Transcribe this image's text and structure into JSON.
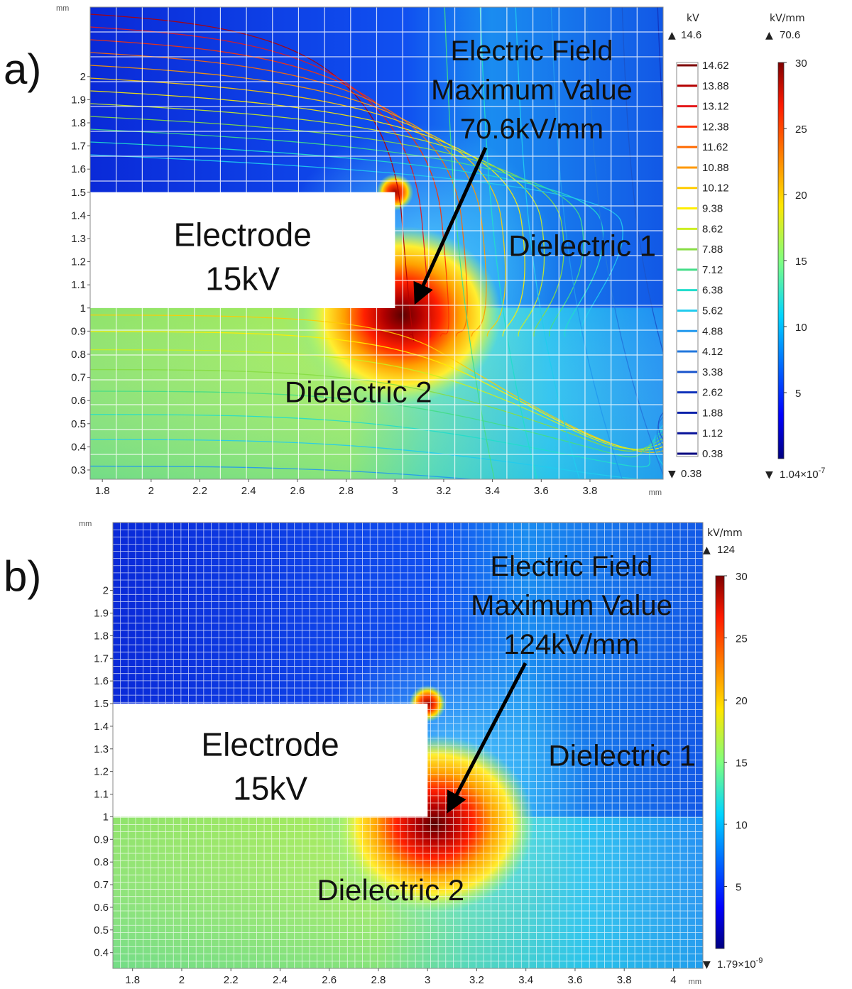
{
  "chart_data": [
    {
      "type": "heatmap",
      "panel_label": "a)",
      "x_unit": "mm",
      "y_unit": "mm",
      "xlim": [
        1.75,
        4.1
      ],
      "ylim": [
        0.26,
        2.3
      ],
      "x_ticks": [
        "1.8",
        "2",
        "2.2",
        "2.4",
        "2.6",
        "2.8",
        "3",
        "3.2",
        "3.4",
        "3.6",
        "3.8"
      ],
      "y_ticks": [
        "2",
        "1.9",
        "1.8",
        "1.7",
        "1.6",
        "1.5",
        "1.4",
        "1.3",
        "1.2",
        "1.1",
        "1",
        "0.9",
        "0.8",
        "0.7",
        "0.6",
        "0.5",
        "0.4",
        "0.3"
      ],
      "electrode": {
        "label_line1": "Electrode",
        "label_line2": "15kV",
        "x_range": [
          1.75,
          3.0
        ],
        "y_range": [
          1.0,
          1.5
        ]
      },
      "regions": [
        {
          "label": "Dielectric 1"
        },
        {
          "label": "Dielectric 2"
        }
      ],
      "annotation": {
        "line1": "Electric Field",
        "line2": "Maximum Value",
        "line3": "70.6kV/mm",
        "peak_kv_mm": 70.6,
        "peak_at": [
          3.0,
          1.0
        ]
      },
      "potential_colorbar": {
        "unit": "kV",
        "max_label": "14.6",
        "min_label": "0.38",
        "levels": [
          "14.62",
          "13.88",
          "13.12",
          "12.38",
          "11.62",
          "10.88",
          "10.12",
          "9.38",
          "8.62",
          "7.88",
          "7.12",
          "6.38",
          "5.62",
          "4.88",
          "4.12",
          "3.38",
          "2.62",
          "1.88",
          "1.12",
          "0.38"
        ],
        "level_colors": [
          "#7f0000",
          "#b40000",
          "#e41a1c",
          "#ff3300",
          "#ff6a00",
          "#ff9900",
          "#ffcc00",
          "#ffee00",
          "#ccee22",
          "#88dd44",
          "#44dd88",
          "#22ddcc",
          "#22ccee",
          "#2299ee",
          "#2277dd",
          "#1a55cc",
          "#1133bb",
          "#0a22aa",
          "#051199",
          "#000080"
        ]
      },
      "field_colorbar": {
        "unit": "kV/mm",
        "max_label": "70.6",
        "min_label": "1.04×10",
        "min_exp": "-7",
        "ticks": [
          "30",
          "25",
          "20",
          "15",
          "10",
          "5"
        ],
        "range": [
          0,
          30
        ]
      },
      "mesh": "coarse"
    },
    {
      "type": "heatmap",
      "panel_label": "b)",
      "x_unit": "mm",
      "y_unit": "mm",
      "xlim": [
        1.72,
        4.12
      ],
      "ylim": [
        0.33,
        2.3
      ],
      "x_ticks": [
        "1.8",
        "2",
        "2.2",
        "2.4",
        "2.6",
        "2.8",
        "3",
        "3.2",
        "3.4",
        "3.6",
        "3.8",
        "4"
      ],
      "y_ticks": [
        "2",
        "1.9",
        "1.8",
        "1.7",
        "1.6",
        "1.5",
        "1.4",
        "1.3",
        "1.2",
        "1.1",
        "1",
        "0.9",
        "0.8",
        "0.7",
        "0.6",
        "0.5",
        "0.4"
      ],
      "electrode": {
        "label_line1": "Electrode",
        "label_line2": "15kV",
        "x_range": [
          1.72,
          3.0
        ],
        "y_range": [
          1.0,
          1.5
        ]
      },
      "regions": [
        {
          "label": "Dielectric 1"
        },
        {
          "label": "Dielectric 2"
        }
      ],
      "annotation": {
        "line1": "Electric Field",
        "line2": "Maximum Value",
        "line3": "124kV/mm",
        "peak_kv_mm": 124,
        "peak_at": [
          3.0,
          1.0
        ]
      },
      "field_colorbar": {
        "unit": "kV/mm",
        "max_label": "124",
        "min_label": "1.79×10",
        "min_exp": "-9",
        "ticks": [
          "30",
          "25",
          "20",
          "15",
          "10",
          "5"
        ],
        "range": [
          0,
          30
        ]
      },
      "mesh": "fine"
    }
  ]
}
